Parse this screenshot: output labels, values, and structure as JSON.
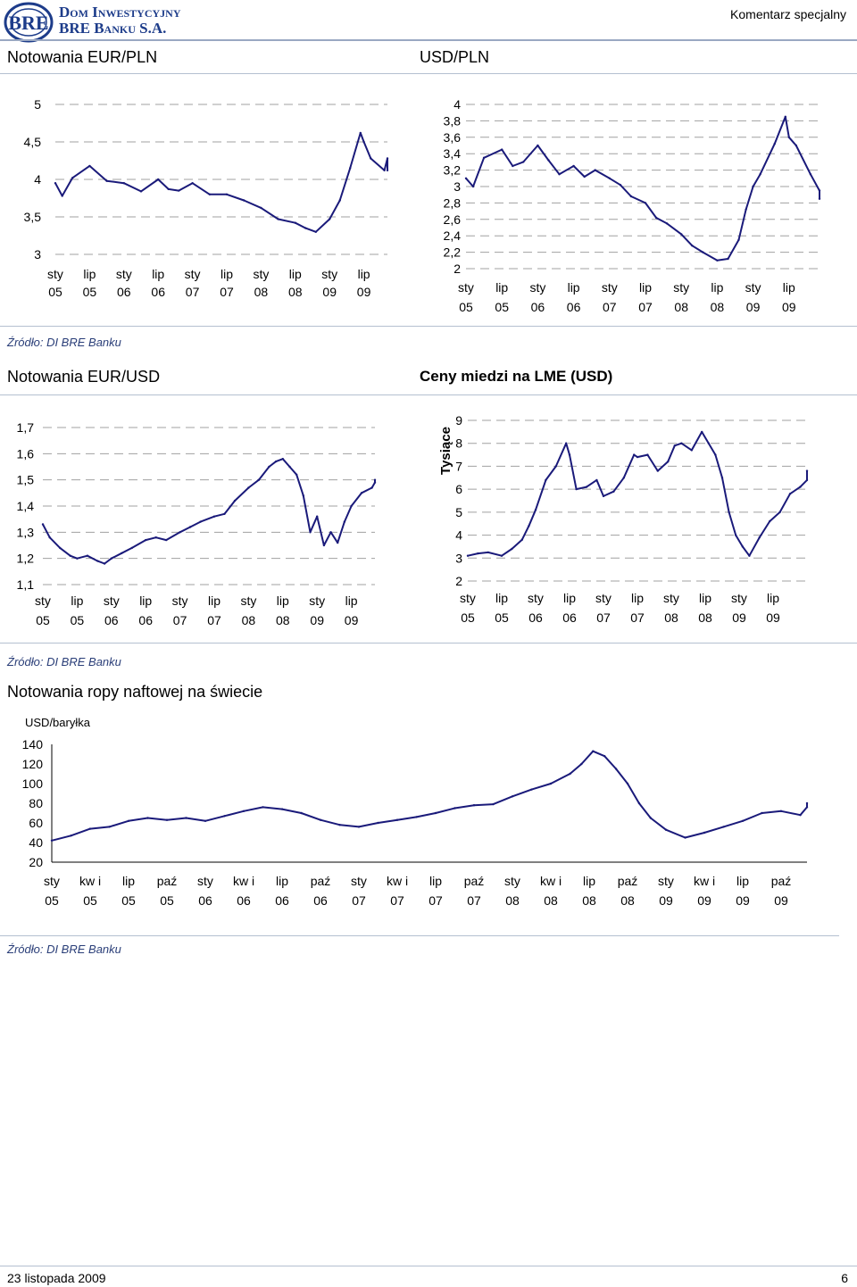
{
  "header": {
    "brand_line1": "Dom Inwestycyjny",
    "brand_line2": "BRE Banku S.A.",
    "report_type": "Komentarz specjalny"
  },
  "sections": {
    "eurpln_title": "Notowania EUR/PLN",
    "usdpln_title": "USD/PLN",
    "eurusd_title": "Notowania EUR/USD",
    "copper_title": "Ceny miedzi na LME (USD)",
    "oil_title": "Notowania ropy naftowej na świecie",
    "source_1": "Źródło: DI BRE Banku",
    "source_2": "Źródło: DI BRE Banku",
    "source_3": "Źródło: DI BRE Banku"
  },
  "footer": {
    "date": "23 listopada 2009",
    "page": "6"
  },
  "colors": {
    "line": "#1a1a7a",
    "grid": "#a0a0a0",
    "rule": "#b4c0d0",
    "brand": "#1d3c8a"
  },
  "icons": {
    "logo": "bre-logo-icon"
  },
  "chart_data": [
    {
      "id": "eurpln",
      "type": "line",
      "title": "",
      "ylabel": "",
      "ylim": [
        3,
        5
      ],
      "yticks": [
        "5",
        "4,5",
        "4",
        "3,5",
        "3"
      ],
      "grid": true,
      "xticks": [
        [
          "sty",
          "05"
        ],
        [
          "lip",
          "05"
        ],
        [
          "sty",
          "06"
        ],
        [
          "lip",
          "06"
        ],
        [
          "sty",
          "07"
        ],
        [
          "lip",
          "07"
        ],
        [
          "sty",
          "08"
        ],
        [
          "lip",
          "08"
        ],
        [
          "sty",
          "09"
        ],
        [
          "lip",
          "09"
        ]
      ],
      "x": [
        0.0,
        0.2,
        0.5,
        1.0,
        1.5,
        2.0,
        2.5,
        3.0,
        3.3,
        3.6,
        4.0,
        4.5,
        5.0,
        5.5,
        6.0,
        6.5,
        7.0,
        7.3,
        7.6,
        8.0,
        8.3,
        8.6,
        8.9,
        9.0,
        9.2,
        9.6,
        10.0,
        10.3
      ],
      "values": [
        3.95,
        3.78,
        4.02,
        4.18,
        3.98,
        3.95,
        3.84,
        4.0,
        3.87,
        3.85,
        3.95,
        3.8,
        3.8,
        3.72,
        3.62,
        3.47,
        3.42,
        3.35,
        3.3,
        3.47,
        3.72,
        4.15,
        4.62,
        4.5,
        4.28,
        4.12,
        4.28,
        4.12
      ]
    },
    {
      "id": "usdpln",
      "type": "line",
      "title": "",
      "ylabel": "",
      "ylim": [
        2,
        4
      ],
      "yticks": [
        "4",
        "3,8",
        "3,6",
        "3,4",
        "3,2",
        "3",
        "2,8",
        "2,6",
        "2,4",
        "2,2",
        "2"
      ],
      "grid": true,
      "xticks": [
        [
          "sty",
          "05"
        ],
        [
          "lip",
          "05"
        ],
        [
          "sty",
          "06"
        ],
        [
          "lip",
          "06"
        ],
        [
          "sty",
          "07"
        ],
        [
          "lip",
          "07"
        ],
        [
          "sty",
          "08"
        ],
        [
          "lip",
          "08"
        ],
        [
          "sty",
          "09"
        ],
        [
          "lip",
          "09"
        ]
      ],
      "x": [
        0.0,
        0.2,
        0.5,
        1.0,
        1.3,
        1.6,
        2.0,
        2.3,
        2.6,
        3.0,
        3.3,
        3.6,
        4.0,
        4.3,
        4.6,
        5.0,
        5.3,
        5.6,
        6.0,
        6.3,
        6.6,
        7.0,
        7.3,
        7.6,
        7.8,
        8.0,
        8.2,
        8.6,
        8.9,
        9.0,
        9.2,
        9.6,
        10.0,
        10.3
      ],
      "values": [
        3.1,
        3.0,
        3.35,
        3.45,
        3.25,
        3.3,
        3.5,
        3.32,
        3.15,
        3.25,
        3.12,
        3.2,
        3.1,
        3.02,
        2.88,
        2.8,
        2.62,
        2.55,
        2.42,
        2.28,
        2.2,
        2.1,
        2.12,
        2.35,
        2.72,
        3.0,
        3.15,
        3.52,
        3.85,
        3.6,
        3.5,
        3.15,
        2.95,
        2.85
      ]
    },
    {
      "id": "eurusd",
      "type": "line",
      "title": "",
      "ylabel": "",
      "ylim": [
        1.1,
        1.7
      ],
      "yticks": [
        "1,7",
        "1,6",
        "1,5",
        "1,4",
        "1,3",
        "1,2",
        "1,1"
      ],
      "grid": true,
      "xticks": [
        [
          "sty",
          "05"
        ],
        [
          "lip",
          "05"
        ],
        [
          "sty",
          "06"
        ],
        [
          "lip",
          "06"
        ],
        [
          "sty",
          "07"
        ],
        [
          "lip",
          "07"
        ],
        [
          "sty",
          "08"
        ],
        [
          "lip",
          "08"
        ],
        [
          "sty",
          "09"
        ],
        [
          "lip",
          "09"
        ]
      ],
      "x": [
        0.0,
        0.2,
        0.5,
        0.8,
        1.0,
        1.3,
        1.6,
        1.8,
        2.0,
        2.3,
        2.6,
        3.0,
        3.3,
        3.6,
        4.0,
        4.3,
        4.6,
        5.0,
        5.3,
        5.6,
        6.0,
        6.3,
        6.6,
        6.8,
        7.0,
        7.2,
        7.4,
        7.6,
        7.8,
        8.0,
        8.2,
        8.4,
        8.6,
        8.8,
        9.0,
        9.3,
        9.6,
        10.0,
        10.3
      ],
      "values": [
        1.33,
        1.28,
        1.24,
        1.21,
        1.2,
        1.21,
        1.19,
        1.18,
        1.2,
        1.22,
        1.24,
        1.27,
        1.28,
        1.27,
        1.3,
        1.32,
        1.34,
        1.36,
        1.37,
        1.42,
        1.47,
        1.5,
        1.55,
        1.57,
        1.58,
        1.55,
        1.52,
        1.44,
        1.3,
        1.36,
        1.25,
        1.3,
        1.26,
        1.34,
        1.4,
        1.45,
        1.47,
        1.49,
        1.5
      ]
    },
    {
      "id": "copper",
      "type": "line",
      "title": "",
      "ylabel": "Tysiące",
      "ylim": [
        2,
        9
      ],
      "yticks": [
        "9",
        "8",
        "7",
        "6",
        "5",
        "4",
        "3",
        "2"
      ],
      "grid": true,
      "xticks": [
        [
          "sty",
          "05"
        ],
        [
          "lip",
          "05"
        ],
        [
          "sty",
          "06"
        ],
        [
          "lip",
          "06"
        ],
        [
          "sty",
          "07"
        ],
        [
          "lip",
          "07"
        ],
        [
          "sty",
          "08"
        ],
        [
          "lip",
          "08"
        ],
        [
          "sty",
          "09"
        ],
        [
          "lip",
          "09"
        ]
      ],
      "x": [
        0.0,
        0.3,
        0.6,
        1.0,
        1.3,
        1.6,
        1.8,
        2.0,
        2.3,
        2.6,
        2.9,
        3.0,
        3.2,
        3.5,
        3.8,
        4.0,
        4.3,
        4.6,
        4.9,
        5.0,
        5.3,
        5.6,
        5.9,
        6.1,
        6.3,
        6.6,
        6.9,
        7.1,
        7.3,
        7.5,
        7.7,
        7.9,
        8.1,
        8.3,
        8.6,
        8.9,
        9.2,
        9.5,
        9.8,
        10.0,
        10.3
      ],
      "values": [
        3.1,
        3.2,
        3.25,
        3.1,
        3.4,
        3.8,
        4.4,
        5.1,
        6.4,
        7.0,
        8.0,
        7.5,
        6.0,
        6.1,
        6.4,
        5.7,
        5.9,
        6.5,
        7.5,
        7.4,
        7.5,
        6.8,
        7.2,
        7.9,
        8.0,
        7.7,
        8.5,
        8.0,
        7.5,
        6.5,
        5.0,
        4.0,
        3.5,
        3.1,
        3.9,
        4.6,
        5.0,
        5.8,
        6.1,
        6.4,
        6.8
      ]
    },
    {
      "id": "oil",
      "type": "line",
      "title": "",
      "ylabel": "USD/baryłka",
      "ylim": [
        20,
        140
      ],
      "yticks": [
        "140",
        "120",
        "100",
        "80",
        "60",
        "40",
        "20"
      ],
      "grid": false,
      "xticks": [
        [
          "sty",
          "05"
        ],
        [
          "kw i",
          "05"
        ],
        [
          "lip",
          "05"
        ],
        [
          "paź",
          "05"
        ],
        [
          "sty",
          "06"
        ],
        [
          "kw i",
          "06"
        ],
        [
          "lip",
          "06"
        ],
        [
          "paź",
          "06"
        ],
        [
          "sty",
          "07"
        ],
        [
          "kw i",
          "07"
        ],
        [
          "lip",
          "07"
        ],
        [
          "paź",
          "07"
        ],
        [
          "sty",
          "08"
        ],
        [
          "kw i",
          "08"
        ],
        [
          "lip",
          "08"
        ],
        [
          "paź",
          "08"
        ],
        [
          "sty",
          "09"
        ],
        [
          "kw i",
          "09"
        ],
        [
          "lip",
          "09"
        ],
        [
          "paź",
          "09"
        ]
      ],
      "x": [
        0.0,
        0.5,
        1.0,
        1.5,
        2.0,
        2.5,
        3.0,
        3.5,
        4.0,
        4.5,
        5.0,
        5.5,
        6.0,
        6.5,
        7.0,
        7.5,
        8.0,
        8.5,
        9.0,
        9.5,
        10.0,
        10.5,
        11.0,
        11.5,
        12.0,
        12.5,
        13.0,
        13.5,
        13.8,
        14.1,
        14.4,
        14.7,
        15.0,
        15.3,
        15.6,
        16.0,
        16.5,
        17.0,
        17.5,
        18.0,
        18.5,
        19.0,
        19.5,
        20.0,
        20.4
      ],
      "values": [
        42,
        47,
        54,
        56,
        62,
        65,
        63,
        65,
        62,
        67,
        72,
        76,
        74,
        70,
        63,
        58,
        56,
        60,
        63,
        66,
        70,
        75,
        78,
        79,
        87,
        94,
        100,
        110,
        120,
        133,
        128,
        115,
        100,
        80,
        65,
        53,
        45,
        50,
        56,
        62,
        70,
        72,
        68,
        76,
        80
      ]
    }
  ]
}
